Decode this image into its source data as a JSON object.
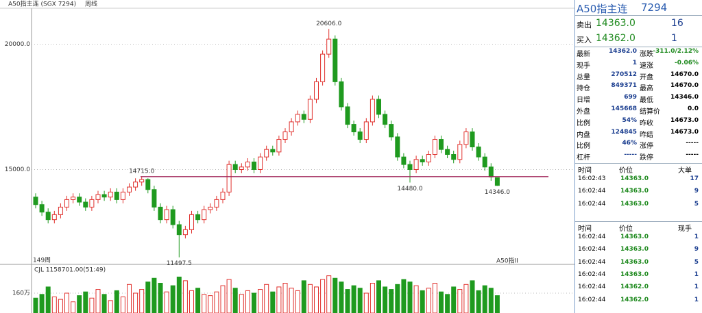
{
  "header": {
    "title": "A50指主连 (SGX 7294)",
    "period": "周线"
  },
  "chart_data": {
    "type": "candlestick",
    "period_label": "149周",
    "watermark": "A50指II",
    "open": [
      13900,
      13600,
      13300,
      13000,
      13200,
      13500,
      13800,
      13900,
      13700,
      13500,
      13800,
      14000,
      13900,
      14100,
      13800,
      14100,
      14300,
      14500,
      14600,
      14200,
      13500,
      13000,
      13400,
      12800,
      12400,
      12600,
      13200,
      13000,
      13400,
      13500,
      13800,
      14100,
      15200,
      15000,
      15100,
      15300,
      15000,
      15500,
      15800,
      15700,
      16200,
      16500,
      16900,
      17200,
      17000,
      17800,
      18500,
      19600,
      20200,
      18500,
      17500,
      16800,
      16500,
      16200,
      16900,
      17800,
      17200,
      16800,
      16300,
      15500,
      15200,
      15000,
      15400,
      15300,
      15600,
      16200,
      15800,
      15600,
      15400,
      16000,
      16500,
      15900,
      15500,
      15100,
      14670
    ],
    "high": [
      14050,
      13750,
      13450,
      13350,
      13650,
      13950,
      14050,
      14050,
      13850,
      13950,
      14150,
      14150,
      14250,
      14250,
      14250,
      14450,
      14650,
      14715,
      14650,
      14350,
      13650,
      13550,
      13550,
      12950,
      12750,
      13350,
      13350,
      13550,
      13650,
      13950,
      14250,
      15350,
      15350,
      15250,
      15450,
      15450,
      15650,
      15950,
      15950,
      16350,
      16650,
      17050,
      17350,
      17350,
      17950,
      18650,
      19750,
      20606,
      20350,
      18650,
      17650,
      16950,
      16650,
      17050,
      17950,
      17950,
      17350,
      16950,
      16450,
      15650,
      15350,
      15550,
      15550,
      15750,
      16350,
      16350,
      15950,
      15750,
      16150,
      16650,
      16650,
      16050,
      15650,
      15250,
      14670
    ],
    "low": [
      13450,
      13150,
      12850,
      12850,
      13050,
      13350,
      13650,
      13550,
      13350,
      13350,
      13650,
      13750,
      13750,
      13650,
      13650,
      13950,
      14150,
      14350,
      14050,
      13350,
      12850,
      12850,
      12650,
      11497.5,
      12250,
      12450,
      12850,
      12850,
      13250,
      13350,
      13650,
      13950,
      14850,
      14850,
      14950,
      14850,
      14850,
      15350,
      15550,
      15550,
      16050,
      16350,
      16750,
      16850,
      16850,
      17650,
      18350,
      19450,
      18350,
      17350,
      16650,
      16350,
      16050,
      16050,
      16750,
      17050,
      16650,
      16150,
      15350,
      15050,
      14480,
      14850,
      15150,
      15150,
      15450,
      15650,
      15450,
      15250,
      15250,
      15850,
      15750,
      15350,
      14950,
      14550,
      14346
    ],
    "close": [
      13600,
      13300,
      13000,
      13200,
      13500,
      13800,
      13900,
      13700,
      13500,
      13800,
      14000,
      13900,
      14100,
      13800,
      14100,
      14300,
      14500,
      14600,
      14200,
      13500,
      13000,
      13400,
      12800,
      12400,
      12600,
      13200,
      13000,
      13400,
      13500,
      13800,
      14100,
      15200,
      15000,
      15100,
      15300,
      15000,
      15500,
      15800,
      15700,
      16200,
      16500,
      16900,
      17200,
      17000,
      17800,
      18500,
      19600,
      20200,
      18500,
      17500,
      16800,
      16500,
      16200,
      16900,
      17800,
      17200,
      16800,
      16300,
      15500,
      15200,
      15000,
      15400,
      15300,
      15600,
      16200,
      15800,
      15600,
      15400,
      16000,
      16500,
      15900,
      15500,
      15100,
      14700,
      14363
    ],
    "volume": [
      1200000,
      1500000,
      2100000,
      1300000,
      1100000,
      1600000,
      900000,
      1400000,
      1700000,
      1200000,
      1900000,
      1500000,
      1000000,
      1800000,
      1300000,
      2300000,
      1600000,
      1900000,
      2500000,
      2800000,
      2400000,
      1700000,
      2200000,
      2900000,
      2600000,
      1800000,
      2000000,
      1500000,
      1400000,
      1700000,
      2200000,
      2700000,
      2000000,
      1500000,
      1800000,
      1600000,
      1900000,
      2300000,
      1700000,
      2100000,
      2400000,
      2000000,
      1800000,
      2600000,
      2300000,
      2100000,
      2700000,
      3000000,
      2800000,
      2500000,
      1900000,
      2200000,
      2000000,
      1600000,
      2400000,
      2600000,
      2100000,
      1900000,
      2300000,
      2700000,
      2500000,
      2200000,
      1800000,
      2000000,
      2400000,
      1700000,
      1500000,
      2100000,
      1900000,
      2300000,
      2600000,
      1800000,
      2200000,
      2000000,
      1400000
    ],
    "up_color": "#e0302c",
    "down_color": "#1f9a1f",
    "ylim": [
      11243,
      21378
    ],
    "yticks": [
      {
        "value": 15000,
        "label": "15000.0"
      },
      {
        "value": 20000,
        "label": "20000.0"
      }
    ],
    "volume_label": "CJL 1158701.00(51:49)",
    "vol_ylim": [
      0,
      3145000
    ],
    "vol_ticks": [
      {
        "value": 1600000,
        "label": "160万"
      }
    ],
    "hline": {
      "value": 14715,
      "color": "#a0245a"
    },
    "annotations": [
      {
        "value": 20606,
        "label": "20606.0"
      },
      {
        "value": 14715,
        "label": "14715.0"
      },
      {
        "value": 14480,
        "label": "14480.0"
      },
      {
        "value": 14346,
        "label": "14346.0"
      },
      {
        "value": 11497.5,
        "label": "11497.5"
      }
    ]
  },
  "quote": {
    "title": "A50指主连",
    "code": "7294",
    "sell": [
      "卖出",
      "14363.0",
      "16"
    ],
    "buy": [
      "买入",
      "14362.0",
      "1"
    ],
    "stats": [
      [
        "最新",
        "14362.0",
        "涨跌",
        "-311.0/2.12%"
      ],
      [
        "现手",
        "1",
        "速涨",
        "-0.06%"
      ],
      [
        "总量",
        "270512",
        "开盘",
        "14670.0"
      ],
      [
        "持仓",
        "849371",
        "最高",
        "14670.0"
      ],
      [
        "日增",
        "699",
        "最低",
        "14346.0"
      ],
      [
        "外盘",
        "145668",
        "结算价",
        "0.0"
      ],
      [
        "比例",
        "54%",
        "昨收",
        "14673.0"
      ],
      [
        "内盘",
        "124845",
        "昨结",
        "14673.0"
      ],
      [
        "比例",
        "46%",
        "涨停",
        "-----"
      ],
      [
        "杠杆",
        "-----",
        "跌停",
        "-----"
      ]
    ],
    "big_trades": {
      "header": [
        "时间",
        "价位",
        "大单"
      ],
      "rows": [
        [
          "16:02:43",
          "14363.0",
          "17"
        ],
        [
          "16:02:44",
          "14363.0",
          "9"
        ],
        [
          "16:02:44",
          "14363.0",
          "5"
        ]
      ]
    },
    "ticks": {
      "header": [
        "时间",
        "价位",
        "现手"
      ],
      "rows": [
        [
          "16:02:44",
          "14363.0",
          "1"
        ],
        [
          "16:02:44",
          "14363.0",
          "9"
        ],
        [
          "16:02:44",
          "14363.0",
          "5"
        ],
        [
          "16:02:44",
          "14363.0",
          "1"
        ],
        [
          "16:02:44",
          "14362.0",
          "1"
        ],
        [
          "16:02:44",
          "14362.0",
          "1"
        ]
      ]
    }
  }
}
